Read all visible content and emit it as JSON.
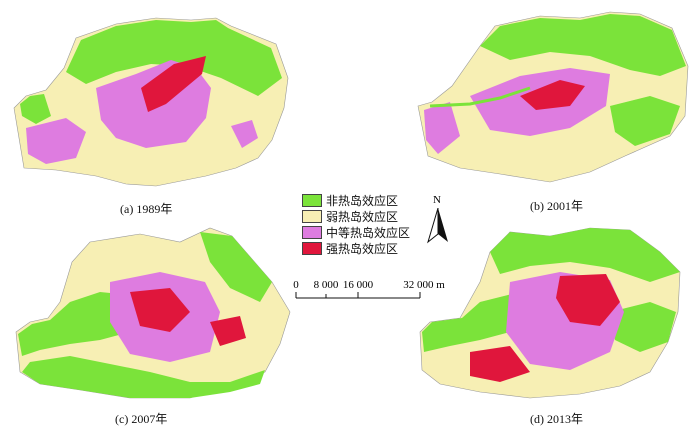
{
  "maps": [
    {
      "caption": "(a) 1989年",
      "base": "#f7efb4"
    },
    {
      "caption": "(b) 2001年",
      "base": "#f7efb4"
    },
    {
      "caption": "(c) 2007年",
      "base": "#f7efb4"
    },
    {
      "caption": "(d) 2013年",
      "base": "#f7efb4"
    }
  ],
  "legend": [
    {
      "label": "非热岛效应区",
      "color": "#7be33a"
    },
    {
      "label": "弱热岛效应区",
      "color": "#f7efb4"
    },
    {
      "label": "中等热岛效应区",
      "color": "#de7ce0"
    },
    {
      "label": "强热岛效应区",
      "color": "#e0163c"
    }
  ],
  "north_label": "N",
  "scale": {
    "ticks": [
      "0",
      "8 000",
      "16 000",
      "32 000 m"
    ]
  }
}
